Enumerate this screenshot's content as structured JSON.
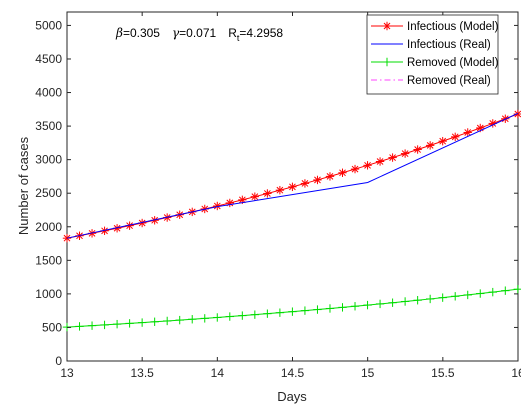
{
  "chart_data": {
    "type": "line",
    "xlabel": "Days",
    "ylabel": "Number of cases",
    "xlim": [
      13,
      16
    ],
    "ylim": [
      0,
      5200
    ],
    "xticks": [
      13,
      13.5,
      14,
      14.5,
      15,
      15.5,
      16
    ],
    "xtick_labels": [
      "13",
      "13.5",
      "14",
      "14.5",
      "15",
      "15.5",
      "16"
    ],
    "yticks": [
      0,
      500,
      1000,
      1500,
      2000,
      2500,
      3000,
      3500,
      4000,
      4500,
      5000
    ],
    "ytick_labels": [
      "0",
      "500",
      "1000",
      "1500",
      "2000",
      "2500",
      "3000",
      "3500",
      "4000",
      "4500",
      "5000"
    ],
    "grid": false,
    "legend_position": "top-right",
    "annotation": {
      "beta_symbol": "β",
      "beta_value": "=0.305",
      "gamma_symbol": "γ",
      "gamma_value": "=0.071",
      "rt_label": "R",
      "rt_subscript": "t",
      "rt_value": "=4.2958"
    },
    "series": [
      {
        "name": "Infectious (Model)",
        "color": "#ff0000",
        "line": "solid",
        "marker": "asterisk",
        "x0": 13,
        "dx": 0.0833,
        "y_start": 1830,
        "y_end": 3680,
        "growth": "exponential",
        "points": 37
      },
      {
        "name": "Infectious (Real)",
        "color": "#0000ff",
        "line": "solid",
        "marker": "none",
        "x": [
          13,
          14,
          15,
          16
        ],
        "values": [
          1830,
          2300,
          2660,
          3690
        ]
      },
      {
        "name": "Removed (Model)",
        "color": "#00dd00",
        "line": "solid",
        "marker": "plus",
        "x0": 13,
        "dx": 0.0833,
        "y_start": 505,
        "y_end": 1070,
        "growth": "exponential",
        "points": 37
      },
      {
        "name": "Removed (Real)",
        "color": "#ff44ff",
        "line": "dashdot",
        "marker": "none",
        "x": [],
        "values": []
      }
    ]
  }
}
